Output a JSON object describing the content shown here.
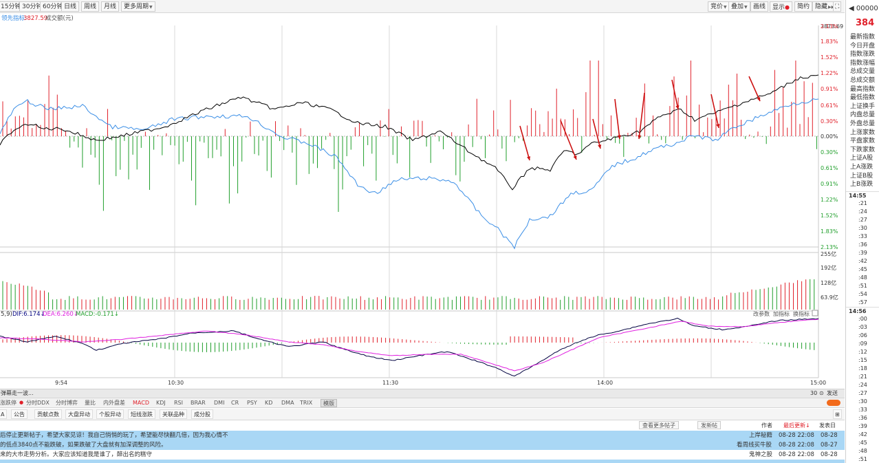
{
  "toolbar": {
    "periods": [
      "15分钟",
      "30分钟",
      "60分钟",
      "日线",
      "周线",
      "月线"
    ],
    "more_period": "更多周期",
    "right_buttons": [
      "竞价",
      "叠加",
      "画线",
      "显示",
      "简约",
      "隐藏"
    ]
  },
  "legend": {
    "leading_label": "领先指标:",
    "leading_value": "3827.59",
    "volume_label": "成交额(元)"
  },
  "price_axis": {
    "max_price": "3873.69",
    "upper_pct": [
      "2.13%",
      "1.83%",
      "1.52%",
      "1.22%",
      "0.91%",
      "0.61%",
      "0.30%",
      "0.00%"
    ],
    "lower_pct": [
      "0.30%",
      "0.61%",
      "0.91%",
      "1.22%",
      "1.52%",
      "1.83%",
      "2.13%"
    ]
  },
  "volume_axis": [
    "255亿",
    "192亿",
    "128亿",
    "63.9亿"
  ],
  "macd": {
    "params": "5,9)",
    "dif": "DIF:6.174↓",
    "dea": "DEA:6.260↓",
    "macd": "MACD:-0.171↓",
    "buttons": [
      "改参数",
      "加指标",
      "换指标"
    ]
  },
  "time_axis": [
    "9:54",
    "10:30",
    "11:30",
    "14:00",
    "15:00"
  ],
  "comment_bar": {
    "text": "弹幕走一波...",
    "count": "30",
    "send": "发送"
  },
  "indicator_tabs": [
    "涨跌停",
    "分时DDX",
    "分时博弈",
    "量比",
    "内外盘差",
    "MACD",
    "KDJ",
    "RSI",
    "BRAR",
    "DMI",
    "CR",
    "PSY",
    "KD",
    "DMA",
    "TRIX",
    "模版"
  ],
  "news_tabs": [
    "A",
    "公告",
    "贡献点数",
    "大盘异动",
    "个股异动",
    "短线涨跌",
    "关联品种",
    "成分股"
  ],
  "post_header": {
    "more_posts": "查看更多帖子",
    "new_post": "发新帖",
    "author": "作者",
    "latest": "最后更新↓",
    "publish": "发表日"
  },
  "posts": [
    {
      "title": "后停止更新帖子，希望大家见谅！我自己悄悄的玩了，希望能尽快翻几倍，因为我心情不",
      "author": "上岸秘籍",
      "updated": "08-28 22:08",
      "date": "08-28"
    },
    {
      "title": "的低点3840点不能跌破，如果跌破了大盘就有加深调整的风险。",
      "author": "看周线买牛股",
      "updated": "08-28 22:08",
      "date": "08-27"
    },
    {
      "title": "来的大市走势分析。大家应该知道我是谁了，醉出名的糕守",
      "author": "鬼神之股",
      "updated": "08-28 22:08",
      "date": "08-28"
    }
  ],
  "side_panel": {
    "code": "00000",
    "price": "384",
    "labels": [
      "最新指数",
      "今日开盘",
      "指数涨跌",
      "指数涨幅",
      "总成交量",
      "总成交额",
      "最高指数",
      "最低指数",
      "上证换手",
      "内盘总量",
      "外盘总量",
      "上涨家数",
      "平盘家数",
      "下跌家数",
      "上证A股",
      "上A涨跌",
      "上证B股",
      "上B涨跌"
    ],
    "time1": "14:55",
    "ticks1": [
      ":21",
      ":24",
      ":27",
      ":30",
      ":33",
      ":36",
      ":39",
      ":42",
      ":45",
      ":48",
      ":51",
      ":54",
      ":57"
    ],
    "time2": "14:56",
    "ticks2": [
      ":00",
      ":03",
      ":06",
      ":09",
      ":12",
      ":15",
      ":18",
      ":21",
      ":24",
      ":27",
      ":30",
      ":33",
      ":36",
      ":39",
      ":42",
      ":45",
      ":48",
      ":51"
    ]
  },
  "colors": {
    "up": "#e0202a",
    "down": "#1f9e2a",
    "index_line": "#000000",
    "leading_line": "#3a8ee6",
    "dea_line": "#e020e0",
    "arrow": "#cc1111"
  }
}
